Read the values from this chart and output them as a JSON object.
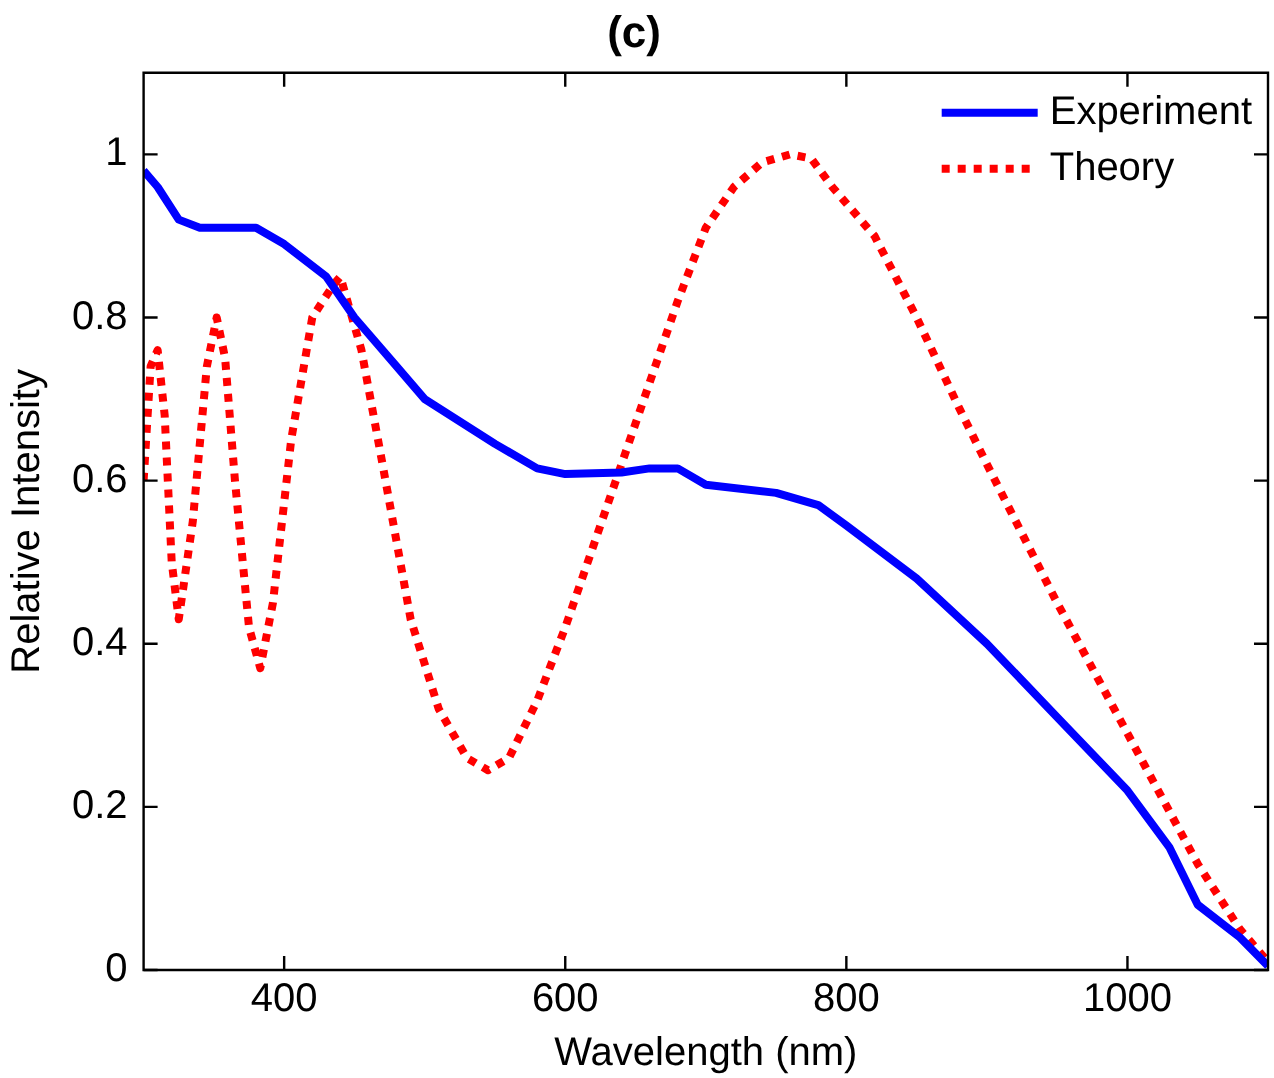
{
  "chart_data": {
    "type": "line",
    "title": "(c)",
    "xlabel": "Wavelength (nm)",
    "ylabel": "Relative Intensity",
    "xlim": [
      300,
      1100
    ],
    "ylim": [
      0,
      1.1
    ],
    "xticks": [
      400,
      600,
      800,
      1000
    ],
    "yticks": [
      0,
      0.2,
      0.4,
      0.6,
      0.8,
      1
    ],
    "grid": false,
    "legend": "top right",
    "marker": "none",
    "series": [
      {
        "name": "Experiment",
        "color": "#0000ff",
        "line_style": "solid",
        "x": [
          300,
          310,
          325,
          340,
          380,
          400,
          430,
          450,
          480,
          500,
          550,
          580,
          600,
          640,
          660,
          680,
          700,
          750,
          780,
          800,
          850,
          900,
          950,
          1000,
          1030,
          1050,
          1080,
          1100
        ],
        "values": [
          0.98,
          0.96,
          0.92,
          0.91,
          0.91,
          0.89,
          0.85,
          0.8,
          0.74,
          0.7,
          0.645,
          0.615,
          0.608,
          0.61,
          0.615,
          0.615,
          0.595,
          0.585,
          0.57,
          0.545,
          0.48,
          0.4,
          0.31,
          0.22,
          0.15,
          0.08,
          0.04,
          0.005
        ]
      },
      {
        "name": "Theory",
        "color": "#ff0000",
        "line_style": "dotted",
        "x": [
          300,
          305,
          310,
          315,
          320,
          325,
          335,
          345,
          352,
          358,
          365,
          375,
          383,
          392,
          405,
          420,
          435,
          440,
          445,
          455,
          470,
          490,
          510,
          530,
          545,
          560,
          580,
          600,
          620,
          640,
          660,
          680,
          700,
          720,
          740,
          760,
          775,
          790,
          820,
          850,
          880,
          900,
          950,
          1000,
          1050,
          1080,
          1100
        ],
        "values": [
          0.6,
          0.74,
          0.76,
          0.68,
          0.5,
          0.43,
          0.55,
          0.74,
          0.8,
          0.75,
          0.6,
          0.42,
          0.37,
          0.45,
          0.65,
          0.8,
          0.84,
          0.85,
          0.82,
          0.76,
          0.62,
          0.43,
          0.32,
          0.26,
          0.245,
          0.26,
          0.33,
          0.42,
          0.52,
          0.62,
          0.72,
          0.82,
          0.91,
          0.96,
          0.99,
          1.0,
          0.995,
          0.96,
          0.9,
          0.8,
          0.69,
          0.62,
          0.45,
          0.29,
          0.13,
          0.05,
          0.01
        ]
      }
    ]
  }
}
